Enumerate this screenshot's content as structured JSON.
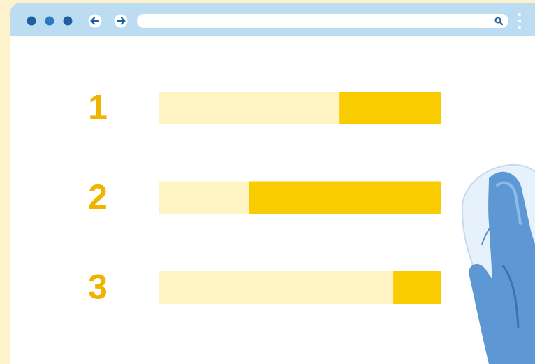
{
  "chart_data": {
    "type": "bar",
    "orientation": "horizontal",
    "categories": [
      "1",
      "2",
      "3"
    ],
    "values": [
      36,
      68,
      17
    ],
    "xlim": [
      100,
      0
    ],
    "color": "#f9cc00",
    "track_color": "#fff5c4",
    "label_color": "#f0b400"
  }
}
